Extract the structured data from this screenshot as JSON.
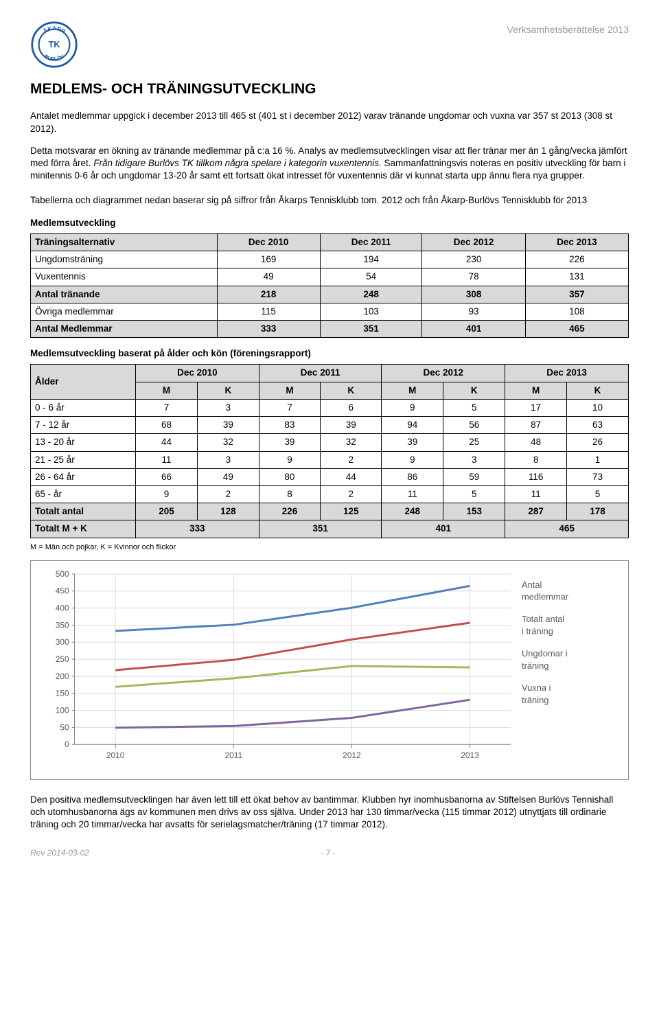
{
  "header": {
    "doc_title": "Verksamhetsberättelse 2013",
    "logo_top": "ÅKARP",
    "logo_mid": "TK",
    "logo_bot": "BURLÖV"
  },
  "title": "MEDLEMS- OCH TRÄNINGSUTVECKLING",
  "para1": "Antalet medlemmar uppgick i december 2013 till 465 st (401 st i december 2012) varav tränande ungdomar och vuxna var 357 st 2013 (308 st 2012).",
  "para2a": "Detta motsvarar en ökning av tränande medlemmar på c:a 16 %. Analys av medlemsutvecklingen visar att fler tränar mer än 1 gång/vecka jämfört med förra året. ",
  "para2b": "Från tidigare Burlövs TK tillkom några spelare i kategorin vuxentennis.",
  "para2c": " Sammanfattningsvis noteras en positiv utveckling för barn i minitennis 0-6 år och ungdomar 13-20 år samt ett fortsatt ökat intresset för vuxentennis där vi kunnat starta upp ännu flera nya grupper.",
  "para3": "Tabellerna och diagrammet nedan baserar sig på siffror från Åkarps Tennisklubb tom. 2012 och från Åkarp-Burlövs Tennisklubb för 2013",
  "table1": {
    "heading": "Medlemsutveckling",
    "columns": [
      "Träningsalternativ",
      "Dec 2010",
      "Dec 2011",
      "Dec 2012",
      "Dec 2013"
    ],
    "rows": [
      {
        "label": "Ungdomsträning",
        "vals": [
          "169",
          "194",
          "230",
          "226"
        ],
        "bold": false
      },
      {
        "label": "Vuxentennis",
        "vals": [
          "49",
          "54",
          "78",
          "131"
        ],
        "bold": false
      },
      {
        "label": "Antal tränande",
        "vals": [
          "218",
          "248",
          "308",
          "357"
        ],
        "bold": true
      },
      {
        "label": "Övriga medlemmar",
        "vals": [
          "115",
          "103",
          "93",
          "108"
        ],
        "bold": false
      },
      {
        "label": "Antal Medlemmar",
        "vals": [
          "333",
          "351",
          "401",
          "465"
        ],
        "bold": true
      }
    ]
  },
  "table2": {
    "heading": "Medlemsutveckling baserat på ålder och kön (föreningsrapport)",
    "top_cols": [
      "Ålder",
      "Dec 2010",
      "Dec 2011",
      "Dec 2012",
      "Dec 2013"
    ],
    "sub": [
      "M",
      "K",
      "M",
      "K",
      "M",
      "K",
      "M",
      "K"
    ],
    "rows": [
      {
        "label": "0 -  6  år",
        "vals": [
          "7",
          "3",
          "7",
          "6",
          "9",
          "5",
          "17",
          "10"
        ],
        "bold": false
      },
      {
        "label": "7 - 12 år",
        "vals": [
          "68",
          "39",
          "83",
          "39",
          "94",
          "56",
          "87",
          "63"
        ],
        "bold": false
      },
      {
        "label": "13 - 20 år",
        "vals": [
          "44",
          "32",
          "39",
          "32",
          "39",
          "25",
          "48",
          "26"
        ],
        "bold": false
      },
      {
        "label": "21 - 25 år",
        "vals": [
          "11",
          "3",
          "9",
          "2",
          "9",
          "3",
          "8",
          "1"
        ],
        "bold": false
      },
      {
        "label": "26 - 64 år",
        "vals": [
          "66",
          "49",
          "80",
          "44",
          "86",
          "59",
          "116",
          "73"
        ],
        "bold": false
      },
      {
        "label": "65 -       år",
        "vals": [
          "9",
          "2",
          "8",
          "2",
          "11",
          "5",
          "11",
          "5"
        ],
        "bold": false
      },
      {
        "label": "Totalt antal",
        "vals": [
          "205",
          "128",
          "226",
          "125",
          "248",
          "153",
          "287",
          "178"
        ],
        "bold": true
      }
    ],
    "total_row": {
      "label": "Totalt M + K",
      "vals": [
        "333",
        "351",
        "401",
        "465"
      ]
    },
    "footnote": "M = Män och pojkar, K = Kvinnor och flickor"
  },
  "chart": {
    "type": "line",
    "x_categories": [
      "2010",
      "2011",
      "2012",
      "2013"
    ],
    "ylim": [
      0,
      500
    ],
    "ytick_step": 50,
    "yticks": [
      0,
      50,
      100,
      150,
      200,
      250,
      300,
      350,
      400,
      450,
      500
    ],
    "grid_color": "#d9d9d9",
    "axis_color": "#808080",
    "tick_font_color": "#595959",
    "tick_fontsize": 12,
    "background_color": "#ffffff",
    "line_width": 3,
    "series": [
      {
        "name": "Antal medlemmar",
        "color": "#4f81bd",
        "values": [
          333,
          351,
          401,
          465
        ]
      },
      {
        "name": "Totalt antal i träning",
        "color": "#c0504d",
        "values": [
          218,
          248,
          308,
          357
        ]
      },
      {
        "name": "Ungdomar i träning",
        "color": "#9bbb59",
        "values": [
          169,
          194,
          230,
          226
        ]
      },
      {
        "name": "Vuxna i träning",
        "color": "#8064a2",
        "values": [
          49,
          54,
          78,
          131
        ]
      }
    ],
    "legend_fontsize": 13,
    "legend_text_color": "#595959"
  },
  "para4": "Den positiva medlemsutvecklingen har även lett till ett ökat behov av bantimmar. Klubben hyr inomhusbanorna av Stiftelsen Burlövs Tennishall och utomhusbanorna ägs av kommunen men drivs av oss själva. Under 2013 har 130 timmar/vecka (115 timmar 2012) utnyttjats till ordinarie träning och 20 timmar/vecka har avsatts för serielagsmatcher/träning (17 timmar 2012).",
  "footer": {
    "rev": "Rev 2014-03-02",
    "page": "- 7 -"
  }
}
